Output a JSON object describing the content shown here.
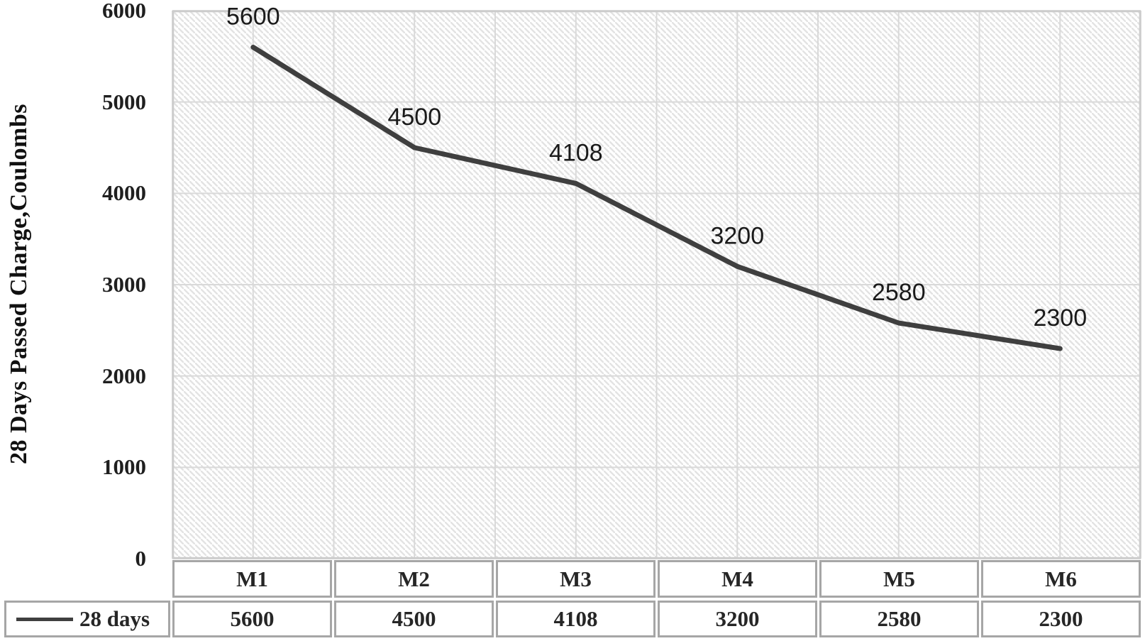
{
  "chart_data": {
    "type": "line",
    "categories": [
      "M1",
      "M2",
      "M3",
      "M4",
      "M5",
      "M6"
    ],
    "series": [
      {
        "name": "28 days",
        "values": [
          5600,
          4500,
          4108,
          3200,
          2580,
          2300
        ]
      }
    ],
    "data_labels": [
      "5600",
      "4500",
      "4108",
      "3200",
      "2580",
      "2300"
    ],
    "title": "",
    "xlabel": "",
    "ylabel": "28 Days Passed Charge,Coulombs",
    "ylim": [
      0,
      6000
    ],
    "ytick_step": 1000,
    "ytick_labels": [
      "6000",
      "5000",
      "4000",
      "3000",
      "2000",
      "1000",
      "0"
    ],
    "grid": "on",
    "plot_background": "diagonal-hatch",
    "legend_position": "bottom-table-left"
  },
  "table": {
    "legend_label": "28 days",
    "header_cells": [
      "M1",
      "M2",
      "M3",
      "M4",
      "M5",
      "M6"
    ],
    "value_cells": [
      "5600",
      "4500",
      "4108",
      "3200",
      "2580",
      "2300"
    ]
  },
  "colors": {
    "series_line": "#3f3f3f",
    "gridline": "#d9d9d9",
    "plot_border": "#cccccc",
    "hatch_line": "#e3e3e3",
    "table_border": "#a6a6a6",
    "text": "#1f1f1f"
  }
}
